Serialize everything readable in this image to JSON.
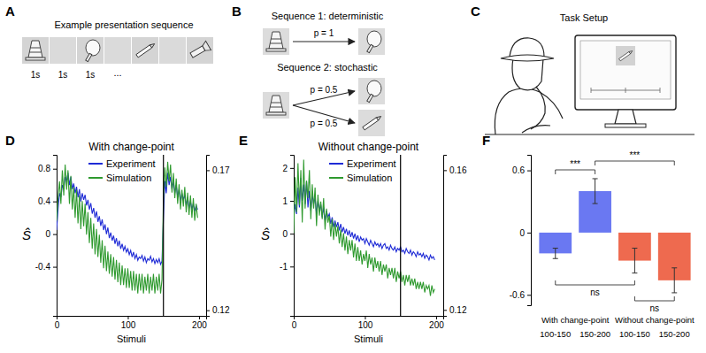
{
  "diagram": {
    "A": {
      "label": "A",
      "title": "Example presentation sequence",
      "durations": [
        "1s",
        "1s",
        "1s"
      ],
      "ellipsis": "..."
    },
    "B": {
      "label": "B",
      "sequences": [
        {
          "title": "Sequence 1: deterministic",
          "probabilities": [
            "p = 1"
          ]
        },
        {
          "title": "Sequence 2: stochastic",
          "probabilities": [
            "p = 0.5",
            "p = 0.5"
          ]
        }
      ]
    },
    "C": {
      "label": "C",
      "title": "Task Setup"
    }
  },
  "chart_data": [
    {
      "type": "line",
      "label": "D",
      "title": "With change-point",
      "x_label": "Stimuli",
      "y_label": "Ŝ",
      "legend": "top",
      "vline": 150,
      "xlim": [
        0,
        210
      ],
      "xticks": [
        0,
        100,
        200
      ],
      "ylim": [
        -1.0,
        0.97
      ],
      "yticks": [
        -0.4,
        0,
        0.4,
        0.8
      ],
      "y2lim": [
        0.118,
        0.1755
      ],
      "y2ticks": [
        0.12,
        0.17
      ],
      "x": [
        0,
        2,
        4,
        6,
        8,
        10,
        12,
        14,
        16,
        18,
        20,
        22,
        24,
        26,
        28,
        30,
        32,
        34,
        36,
        38,
        40,
        42,
        44,
        46,
        48,
        50,
        52,
        54,
        56,
        58,
        60,
        62,
        64,
        66,
        68,
        70,
        72,
        74,
        76,
        78,
        80,
        82,
        84,
        86,
        88,
        90,
        92,
        94,
        96,
        98,
        100,
        102,
        104,
        106,
        108,
        110,
        112,
        114,
        116,
        118,
        120,
        122,
        124,
        126,
        128,
        130,
        132,
        134,
        136,
        138,
        140,
        142,
        144,
        146,
        148,
        150,
        152,
        154,
        156,
        158,
        160,
        162,
        164,
        166,
        168,
        170,
        172,
        174,
        176,
        178,
        180,
        182,
        184,
        186,
        188,
        190,
        192,
        194,
        196,
        198
      ],
      "series": [
        {
          "name": "Experiment",
          "color": "#1f2bd6",
          "values": [
            0.05,
            0.3,
            0.5,
            0.45,
            0.6,
            0.55,
            0.7,
            0.65,
            0.75,
            0.6,
            0.7,
            0.55,
            0.62,
            0.5,
            0.58,
            0.45,
            0.55,
            0.4,
            0.5,
            0.42,
            0.48,
            0.35,
            0.42,
            0.3,
            0.38,
            0.25,
            0.32,
            0.2,
            0.28,
            0.15,
            0.22,
            0.1,
            0.18,
            0.05,
            0.12,
            0.0,
            0.08,
            -0.05,
            0.02,
            -0.08,
            -0.02,
            -0.12,
            -0.05,
            -0.15,
            -0.08,
            -0.18,
            -0.12,
            -0.2,
            -0.15,
            -0.22,
            -0.18,
            -0.25,
            -0.2,
            -0.28,
            -0.22,
            -0.3,
            -0.25,
            -0.32,
            -0.28,
            -0.3,
            -0.26,
            -0.33,
            -0.28,
            -0.35,
            -0.3,
            -0.32,
            -0.27,
            -0.34,
            -0.3,
            -0.36,
            -0.31,
            -0.35,
            -0.3,
            -0.37,
            -0.33,
            0.2,
            0.65,
            0.5,
            0.75,
            0.6,
            0.7,
            0.55,
            0.65,
            0.5,
            0.6,
            0.45,
            0.55,
            0.4,
            0.5,
            0.42,
            0.48,
            0.35,
            0.45,
            0.32,
            0.4,
            0.3,
            0.38,
            0.28,
            0.35,
            0.3
          ]
        },
        {
          "name": "Simulation",
          "color": "#2f9a2f",
          "axis": "y2",
          "values": [
            0.152,
            0.16,
            0.166,
            0.158,
            0.17,
            0.161,
            0.172,
            0.163,
            0.17,
            0.158,
            0.168,
            0.156,
            0.164,
            0.153,
            0.163,
            0.151,
            0.161,
            0.149,
            0.159,
            0.15,
            0.158,
            0.147,
            0.155,
            0.144,
            0.153,
            0.142,
            0.151,
            0.14,
            0.149,
            0.139,
            0.147,
            0.137,
            0.145,
            0.135,
            0.143,
            0.134,
            0.141,
            0.133,
            0.14,
            0.132,
            0.139,
            0.131,
            0.138,
            0.13,
            0.137,
            0.129,
            0.136,
            0.129,
            0.135,
            0.128,
            0.135,
            0.128,
            0.134,
            0.127,
            0.134,
            0.127,
            0.133,
            0.126,
            0.133,
            0.127,
            0.133,
            0.126,
            0.132,
            0.127,
            0.133,
            0.126,
            0.132,
            0.127,
            0.133,
            0.126,
            0.132,
            0.127,
            0.133,
            0.126,
            0.131,
            0.16,
            0.171,
            0.164,
            0.173,
            0.166,
            0.172,
            0.162,
            0.169,
            0.16,
            0.167,
            0.158,
            0.165,
            0.156,
            0.163,
            0.157,
            0.164,
            0.155,
            0.162,
            0.154,
            0.161,
            0.153,
            0.16,
            0.152,
            0.158,
            0.153
          ]
        }
      ]
    },
    {
      "type": "line",
      "label": "E",
      "title": "Without change-point",
      "x_label": "Stimuli",
      "y_label": "Ŝ",
      "legend": "top",
      "vline": 150,
      "xlim": [
        0,
        210
      ],
      "xticks": [
        0,
        100,
        200
      ],
      "ylim": [
        -2.5,
        2.4
      ],
      "yticks": [
        -1,
        0,
        1,
        2
      ],
      "y2lim": [
        0.1183,
        0.1644
      ],
      "y2ticks": [
        0.12,
        0.16
      ],
      "x": [
        0,
        2,
        4,
        6,
        8,
        10,
        12,
        14,
        16,
        18,
        20,
        22,
        24,
        26,
        28,
        30,
        32,
        34,
        36,
        38,
        40,
        42,
        44,
        46,
        48,
        50,
        52,
        54,
        56,
        58,
        60,
        62,
        64,
        66,
        68,
        70,
        72,
        74,
        76,
        78,
        80,
        82,
        84,
        86,
        88,
        90,
        92,
        94,
        96,
        98,
        100,
        102,
        104,
        106,
        108,
        110,
        112,
        114,
        116,
        118,
        120,
        122,
        124,
        126,
        128,
        130,
        132,
        134,
        136,
        138,
        140,
        142,
        144,
        146,
        148,
        150,
        152,
        154,
        156,
        158,
        160,
        162,
        164,
        166,
        168,
        170,
        172,
        174,
        176,
        178,
        180,
        182,
        184,
        186,
        188,
        190,
        192,
        194,
        196,
        198
      ],
      "series": [
        {
          "name": "Experiment",
          "color": "#1f2bd6",
          "values": [
            0.5,
            0.9,
            0.6,
            1.4,
            0.8,
            1.7,
            1.0,
            1.5,
            0.9,
            1.6,
            0.8,
            1.3,
            0.7,
            1.2,
            0.9,
            1.1,
            0.6,
            1.0,
            0.7,
            0.9,
            0.5,
            0.8,
            0.4,
            0.7,
            0.5,
            0.6,
            0.3,
            0.5,
            0.2,
            0.4,
            0.2,
            0.35,
            0.1,
            0.3,
            0.05,
            0.2,
            0.0,
            0.15,
            -0.05,
            0.1,
            -0.1,
            0.05,
            -0.15,
            0.0,
            -0.2,
            -0.05,
            -0.25,
            -0.1,
            -0.2,
            -0.15,
            -0.3,
            -0.15,
            -0.25,
            -0.35,
            -0.2,
            -0.3,
            -0.4,
            -0.25,
            -0.35,
            -0.3,
            -0.4,
            -0.3,
            -0.45,
            -0.35,
            -0.3,
            -0.45,
            -0.4,
            -0.5,
            -0.35,
            -0.45,
            -0.5,
            -0.4,
            -0.55,
            -0.45,
            -0.5,
            -0.4,
            -0.55,
            -0.5,
            -0.6,
            -0.45,
            -0.55,
            -0.6,
            -0.5,
            -0.65,
            -0.55,
            -0.6,
            -0.7,
            -0.55,
            -0.65,
            -0.6,
            -0.7,
            -0.6,
            -0.75,
            -0.65,
            -0.7,
            -0.8,
            -0.65,
            -0.75,
            -0.7,
            -0.8
          ]
        },
        {
          "name": "Simulation",
          "color": "#2f9a2f",
          "axis": "y2",
          "values": [
            0.142,
            0.158,
            0.148,
            0.162,
            0.15,
            0.16,
            0.145,
            0.163,
            0.149,
            0.157,
            0.152,
            0.16,
            0.146,
            0.156,
            0.149,
            0.155,
            0.144,
            0.153,
            0.147,
            0.151,
            0.146,
            0.152,
            0.143,
            0.149,
            0.145,
            0.147,
            0.141,
            0.146,
            0.14,
            0.145,
            0.141,
            0.144,
            0.139,
            0.143,
            0.138,
            0.142,
            0.137,
            0.141,
            0.136,
            0.14,
            0.137,
            0.14,
            0.135,
            0.139,
            0.134,
            0.138,
            0.134,
            0.137,
            0.133,
            0.136,
            0.134,
            0.137,
            0.132,
            0.136,
            0.133,
            0.135,
            0.131,
            0.135,
            0.132,
            0.134,
            0.131,
            0.134,
            0.13,
            0.133,
            0.131,
            0.133,
            0.129,
            0.132,
            0.13,
            0.132,
            0.129,
            0.132,
            0.128,
            0.131,
            0.129,
            0.131,
            0.128,
            0.13,
            0.127,
            0.13,
            0.128,
            0.13,
            0.127,
            0.129,
            0.127,
            0.129,
            0.126,
            0.128,
            0.126,
            0.128,
            0.126,
            0.128,
            0.125,
            0.127,
            0.126,
            0.127,
            0.124,
            0.127,
            0.125,
            0.126
          ]
        }
      ]
    },
    {
      "type": "bar",
      "label": "F",
      "categories": [
        "100-150",
        "150-200",
        "100-150",
        "150-200"
      ],
      "groups": [
        "With change-point",
        "Without change-point"
      ],
      "values": [
        -0.2,
        0.4,
        -0.27,
        -0.46
      ],
      "errors": [
        0.05,
        0.12,
        0.12,
        0.12
      ],
      "colors": [
        "#6a78f2",
        "#6a78f2",
        "#ee6a4f",
        "#ee6a4f"
      ],
      "ylim": [
        -0.7,
        0.75
      ],
      "yticks": [
        -0.6,
        0,
        0.6
      ],
      "annotations": [
        "***",
        "***",
        "ns",
        "ns"
      ]
    }
  ]
}
